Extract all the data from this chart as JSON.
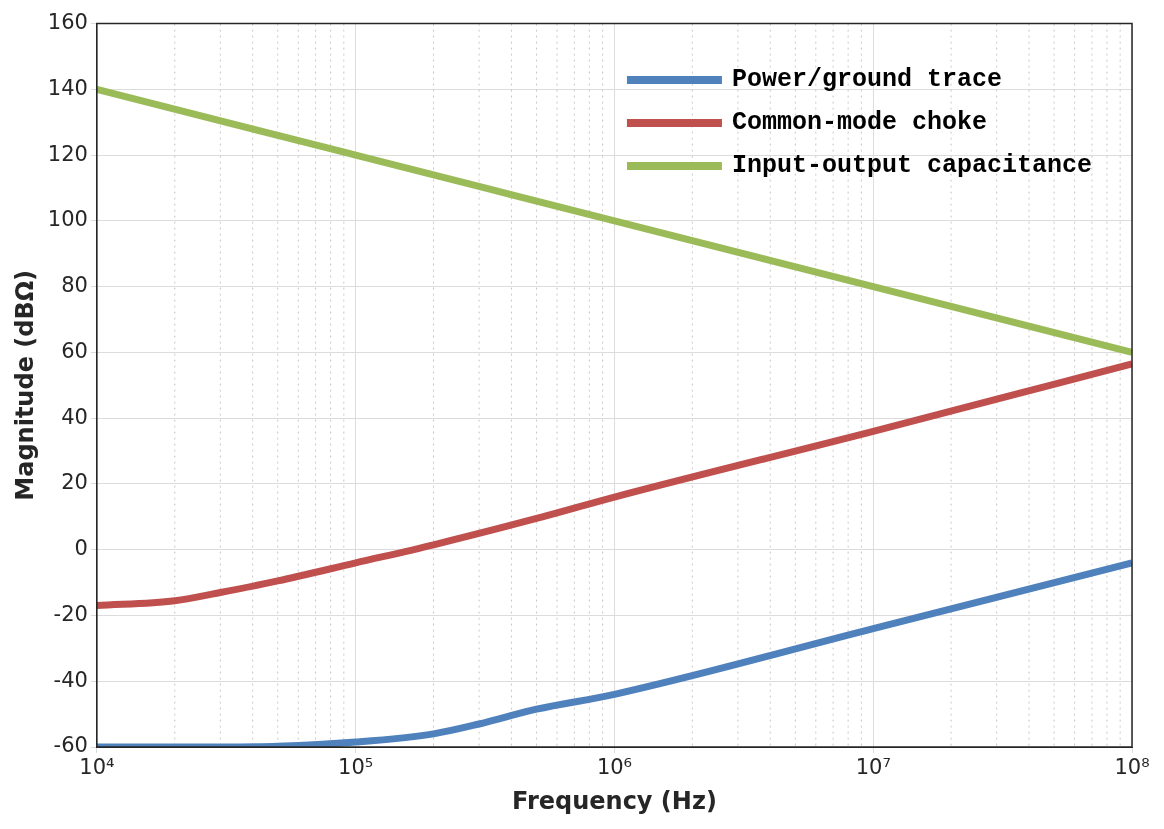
{
  "chart_data": {
    "type": "line",
    "xlabel": "Frequency (Hz)",
    "ylabel": "Magnitude (dBΩ)",
    "xlim": [
      10000,
      100000000
    ],
    "ylim": [
      -60,
      160
    ],
    "log": "x",
    "xticks": [
      {
        "value": 10000,
        "label": "10⁴"
      },
      {
        "value": 100000,
        "label": "10⁵"
      },
      {
        "value": 1000000,
        "label": "10⁶"
      },
      {
        "value": 10000000,
        "label": "10⁷"
      },
      {
        "value": 100000000,
        "label": "10⁸"
      }
    ],
    "yticks": [
      -60,
      -40,
      -20,
      0,
      20,
      40,
      60,
      80,
      100,
      120,
      140,
      160
    ],
    "grid": true,
    "legend": "top right",
    "marker": "none",
    "line_style": "solid",
    "series": [
      {
        "name": "Power/ground trace",
        "color": "#4f81bd",
        "x": [
          10000,
          30000,
          50000,
          100000,
          200000,
          300000,
          500000,
          1000000,
          10000000,
          100000000
        ],
        "values": [
          -60,
          -60,
          -59.8,
          -58.5,
          -56,
          -53,
          -48.5,
          -44,
          -24,
          -4
        ]
      },
      {
        "name": "Common-mode choke",
        "color": "#c0504d",
        "x": [
          10000,
          20000,
          30000,
          50000,
          100000,
          200000,
          500000,
          1000000,
          10000000,
          100000000
        ],
        "values": [
          -17,
          -15.5,
          -13,
          -9.5,
          -4,
          1.5,
          9.5,
          16,
          36,
          56.5
        ]
      },
      {
        "name": "Input-output capacitance",
        "color": "#9bbb59",
        "x": [
          10000,
          100000,
          1000000,
          10000000,
          100000000
        ],
        "values": [
          140,
          120,
          100,
          80,
          60
        ]
      }
    ]
  }
}
